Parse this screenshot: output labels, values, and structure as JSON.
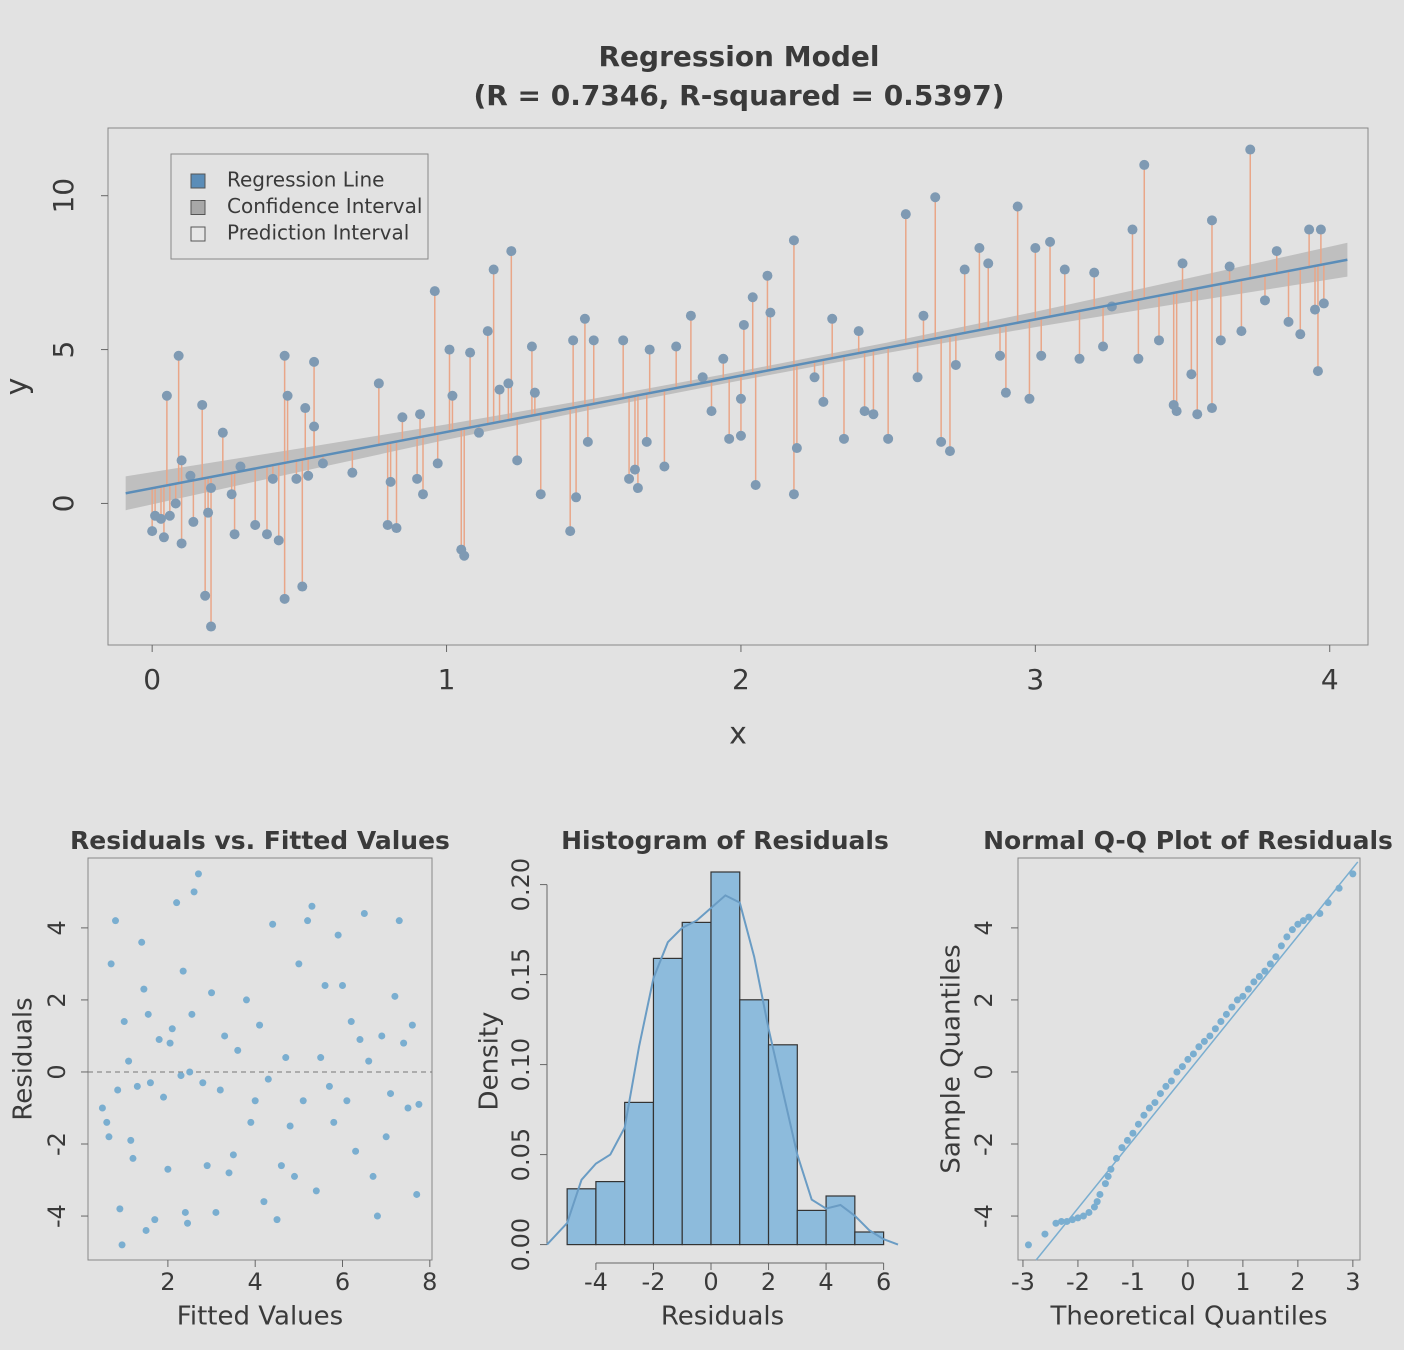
{
  "chart_data": [
    {
      "type": "scatter",
      "title": "Regression Model",
      "subtitle": "(R = 0.7346, R-squared = 0.5397)",
      "xlabel": "x",
      "ylabel": "y",
      "xlim": [
        -0.15,
        4.13
      ],
      "ylim": [
        -4.6,
        12.2
      ],
      "xticks": [
        0,
        1,
        2,
        3,
        4
      ],
      "yticks": [
        0,
        5,
        10
      ],
      "box": true,
      "color": "#7f9ab3",
      "residual_color": "#e9a688",
      "x": [
        0.0,
        0.01,
        0.03,
        0.04,
        0.05,
        0.06,
        0.08,
        0.09,
        0.1,
        0.1,
        0.13,
        0.14,
        0.17,
        0.18,
        0.19,
        0.2,
        0.2,
        0.24,
        0.27,
        0.28,
        0.3,
        0.35,
        0.39,
        0.41,
        0.43,
        0.45,
        0.45,
        0.46,
        0.49,
        0.51,
        0.52,
        0.53,
        0.55,
        0.55,
        0.58,
        0.68,
        0.77,
        0.8,
        0.81,
        0.83,
        0.85,
        0.9,
        0.91,
        0.92,
        0.96,
        0.97,
        1.01,
        1.02,
        1.05,
        1.06,
        1.08,
        1.11,
        1.14,
        1.16,
        1.18,
        1.21,
        1.22,
        1.24,
        1.29,
        1.3,
        1.32,
        1.42,
        1.43,
        1.44,
        1.47,
        1.48,
        1.5,
        1.6,
        1.62,
        1.64,
        1.65,
        1.68,
        1.69,
        1.74,
        1.78,
        1.83,
        1.87,
        1.9,
        1.94,
        1.96,
        2.0,
        2.0,
        2.01,
        2.04,
        2.05,
        2.09,
        2.1,
        2.18,
        2.18,
        2.19,
        2.25,
        2.28,
        2.31,
        2.35,
        2.4,
        2.42,
        2.45,
        2.5,
        2.56,
        2.6,
        2.62,
        2.66,
        2.68,
        2.71,
        2.73,
        2.76,
        2.81,
        2.84,
        2.88,
        2.9,
        2.94,
        2.98,
        3.0,
        3.02,
        3.05,
        3.1,
        3.15,
        3.2,
        3.23,
        3.26,
        3.33,
        3.35,
        3.37,
        3.42,
        3.47,
        3.48,
        3.5,
        3.53,
        3.55,
        3.6,
        3.6,
        3.63,
        3.66,
        3.7,
        3.73,
        3.78,
        3.82,
        3.86,
        3.9,
        3.93,
        3.95,
        3.96,
        3.97,
        3.98
      ],
      "values": [
        -0.9,
        -0.4,
        -0.5,
        -1.1,
        3.5,
        -0.4,
        0.0,
        4.8,
        1.4,
        -1.3,
        0.9,
        -0.6,
        3.2,
        -3.0,
        -0.3,
        -4.0,
        0.5,
        2.3,
        0.3,
        -1.0,
        1.2,
        -0.7,
        -1.0,
        0.8,
        -1.2,
        4.8,
        -3.1,
        3.5,
        0.8,
        -2.7,
        3.1,
        0.9,
        4.6,
        2.5,
        1.3,
        1.0,
        3.9,
        -0.7,
        0.7,
        -0.8,
        2.8,
        0.8,
        2.9,
        0.3,
        6.9,
        1.3,
        5.0,
        3.5,
        -1.5,
        -1.7,
        4.9,
        2.3,
        5.6,
        7.6,
        3.7,
        3.9,
        8.2,
        1.4,
        5.1,
        3.6,
        0.3,
        -0.9,
        5.3,
        0.2,
        6.0,
        2.0,
        5.3,
        5.3,
        0.8,
        1.1,
        0.5,
        2.0,
        5.0,
        1.2,
        5.1,
        6.1,
        4.1,
        3.0,
        4.7,
        2.1,
        3.4,
        2.2,
        5.8,
        6.7,
        0.6,
        7.4,
        6.2,
        8.55,
        0.3,
        1.8,
        4.1,
        3.3,
        6.0,
        2.1,
        5.6,
        3.0,
        2.9,
        2.1,
        9.4,
        4.1,
        6.1,
        9.95,
        2.0,
        1.7,
        4.5,
        7.6,
        8.3,
        7.8,
        4.8,
        3.6,
        9.65,
        3.4,
        8.3,
        4.8,
        8.5,
        7.6,
        4.7,
        7.5,
        5.1,
        6.4,
        8.9,
        4.7,
        11.0,
        5.3,
        3.2,
        3.0,
        7.8,
        4.2,
        2.9,
        9.2,
        3.1,
        5.3,
        7.7,
        5.6,
        11.5,
        6.6,
        8.2,
        5.9,
        5.5,
        8.9,
        6.3,
        4.3,
        8.9,
        6.5
      ],
      "fit_line": {
        "x": [
          -0.09,
          4.06
        ],
        "y": [
          0.33,
          7.92
        ],
        "color": "#5b8db8"
      },
      "confidence_band": {
        "x": [
          -0.09,
          0.5,
          1,
          1.5,
          2,
          2.5,
          3,
          3.5,
          4.06
        ],
        "lower": [
          -0.22,
          1.025,
          2.07,
          3.065,
          4.0,
          4.895,
          5.73,
          6.515,
          7.37
        ],
        "upper": [
          0.88,
          1.785,
          2.57,
          3.405,
          4.3,
          5.235,
          6.23,
          7.275,
          8.47
        ],
        "color": "#a8a8a8"
      },
      "legend_position": "top-left",
      "legend": [
        {
          "label": "Regression Line",
          "color": "#5b8db8"
        },
        {
          "label": "Confidence Interval",
          "color": "#a8a8a8"
        },
        {
          "label": "Prediction Interval",
          "color": "#e6e6e6"
        }
      ]
    },
    {
      "type": "scatter",
      "title": "Residuals vs. Fitted Values",
      "xlabel": "Fitted Values",
      "ylabel": "Residuals",
      "xlim": [
        0.17,
        8.05
      ],
      "ylim": [
        -5.22,
        5.94
      ],
      "xticks": [
        2,
        4,
        6,
        8
      ],
      "yticks": [
        -4,
        -2,
        0,
        2,
        4
      ],
      "box": true,
      "color": "#7aaed0",
      "hline": 0,
      "x": [
        0.5,
        0.6,
        0.65,
        0.7,
        0.8,
        0.85,
        0.9,
        0.95,
        1.0,
        1.1,
        1.15,
        1.2,
        1.3,
        1.4,
        1.45,
        1.5,
        1.55,
        1.6,
        1.7,
        1.8,
        1.9,
        2.0,
        2.05,
        2.1,
        2.2,
        2.3,
        2.35,
        2.4,
        2.45,
        2.5,
        2.55,
        2.6,
        2.7,
        2.8,
        2.9,
        3.0,
        3.1,
        3.2,
        3.3,
        3.4,
        3.5,
        3.6,
        3.8,
        3.9,
        4.0,
        4.1,
        4.2,
        4.3,
        4.4,
        4.5,
        4.6,
        4.7,
        4.8,
        4.9,
        5.0,
        5.1,
        5.2,
        5.3,
        5.4,
        5.5,
        5.6,
        5.7,
        5.8,
        5.9,
        6.0,
        6.1,
        6.2,
        6.3,
        6.4,
        6.5,
        6.6,
        6.7,
        6.8,
        6.9,
        7.0,
        7.1,
        7.2,
        7.3,
        7.4,
        7.5,
        7.6,
        7.7,
        7.75
      ],
      "values": [
        -1.0,
        -1.4,
        -1.8,
        3.0,
        4.2,
        -0.5,
        -3.8,
        -4.8,
        1.4,
        0.3,
        -1.9,
        -2.4,
        -0.4,
        3.6,
        2.3,
        -4.4,
        1.6,
        -0.3,
        -4.1,
        0.9,
        -0.7,
        -2.7,
        0.8,
        1.2,
        4.7,
        -0.1,
        2.8,
        -3.9,
        -4.2,
        0.0,
        1.6,
        5.0,
        5.5,
        -0.3,
        -2.6,
        2.2,
        -3.9,
        -0.5,
        1.0,
        -2.8,
        -2.3,
        0.6,
        2.0,
        -1.4,
        -0.8,
        1.3,
        -3.6,
        -0.2,
        4.1,
        -4.1,
        -2.6,
        0.4,
        -1.5,
        -2.9,
        3.0,
        -0.8,
        4.2,
        4.6,
        -3.3,
        0.4,
        2.4,
        -0.4,
        -1.4,
        3.8,
        2.4,
        -0.8,
        1.4,
        -2.2,
        0.9,
        4.4,
        0.3,
        -2.9,
        -4.0,
        1.0,
        -1.8,
        -0.6,
        2.1,
        4.2,
        0.8,
        -1.0,
        1.3,
        -3.4,
        -0.9
      ]
    },
    {
      "type": "histogram",
      "title": "Histogram of Residuals",
      "xlabel": "Residuals",
      "ylabel": "Density",
      "xlim": [
        -5.7,
        6.5
      ],
      "ylim": [
        -0.008,
        0.212
      ],
      "xticks": [
        -4,
        -2,
        0,
        2,
        4,
        6
      ],
      "yticks": [
        {
          "value": 0,
          "label": "0.00"
        },
        {
          "value": 0.05,
          "label": "0.05"
        },
        {
          "value": 0.1,
          "label": "0.10"
        },
        {
          "value": 0.15,
          "label": "0.15"
        },
        {
          "value": 0.2,
          "label": "0.20"
        }
      ],
      "color": "#8dbbdc",
      "bins": [
        -5,
        -4,
        -3,
        -2,
        -1,
        0,
        1,
        2,
        3,
        4,
        5,
        6
      ],
      "values": [
        0.031,
        0.035,
        0.079,
        0.159,
        0.179,
        0.207,
        0.136,
        0.111,
        0.019,
        0.027,
        0.007
      ],
      "density": {
        "x": [
          -5.7,
          -5,
          -4.5,
          -4,
          -3.5,
          -3,
          -2.5,
          -2,
          -1.5,
          -1,
          -0.5,
          0,
          0.5,
          1,
          1.5,
          2,
          2.5,
          3,
          3.5,
          4,
          4.5,
          5,
          5.5,
          6,
          6.5
        ],
        "y": [
          0.0,
          0.012,
          0.036,
          0.045,
          0.05,
          0.065,
          0.11,
          0.148,
          0.168,
          0.176,
          0.18,
          0.187,
          0.194,
          0.19,
          0.16,
          0.12,
          0.085,
          0.05,
          0.025,
          0.02,
          0.022,
          0.016,
          0.008,
          0.003,
          0.0
        ],
        "color": "#6a9cc4"
      }
    },
    {
      "type": "scatter",
      "title": "Normal Q-Q Plot of Residuals",
      "xlabel": "Theoretical Quantiles",
      "ylabel": "Sample Quantiles",
      "xlim": [
        -3.09,
        3.13
      ],
      "ylim": [
        -5.22,
        5.94
      ],
      "xticks": [
        -3,
        -2,
        -1,
        0,
        1,
        2,
        3
      ],
      "yticks": [
        -4,
        -2,
        0,
        2,
        4
      ],
      "box": true,
      "color": "#7aaed0",
      "fit_line": {
        "x": [
          -2.76,
          3.09
        ],
        "y": [
          -5.22,
          5.83
        ],
        "color": "#7aaed0"
      },
      "x": [
        -2.9,
        -2.6,
        -2.4,
        -2.3,
        -2.2,
        -2.1,
        -2.0,
        -1.9,
        -1.8,
        -1.7,
        -1.65,
        -1.6,
        -1.5,
        -1.45,
        -1.4,
        -1.3,
        -1.2,
        -1.1,
        -1.0,
        -0.9,
        -0.8,
        -0.7,
        -0.6,
        -0.5,
        -0.4,
        -0.3,
        -0.2,
        -0.1,
        0.0,
        0.1,
        0.2,
        0.3,
        0.4,
        0.5,
        0.6,
        0.7,
        0.8,
        0.9,
        1.0,
        1.1,
        1.2,
        1.3,
        1.4,
        1.5,
        1.6,
        1.7,
        1.8,
        1.9,
        2.0,
        2.1,
        2.2,
        2.4,
        2.55,
        2.75,
        3.0
      ],
      "values": [
        -4.8,
        -4.5,
        -4.2,
        -4.15,
        -4.15,
        -4.1,
        -4.05,
        -4.0,
        -3.9,
        -3.75,
        -3.6,
        -3.4,
        -3.1,
        -2.9,
        -2.7,
        -2.4,
        -2.1,
        -1.9,
        -1.7,
        -1.45,
        -1.2,
        -1.0,
        -0.85,
        -0.6,
        -0.4,
        -0.25,
        0.0,
        0.15,
        0.35,
        0.5,
        0.7,
        0.85,
        1.0,
        1.2,
        1.4,
        1.6,
        1.8,
        2.0,
        2.1,
        2.3,
        2.5,
        2.65,
        2.8,
        3.0,
        3.2,
        3.5,
        3.75,
        3.95,
        4.1,
        4.2,
        4.3,
        4.4,
        4.7,
        5.1,
        5.5
      ]
    }
  ]
}
